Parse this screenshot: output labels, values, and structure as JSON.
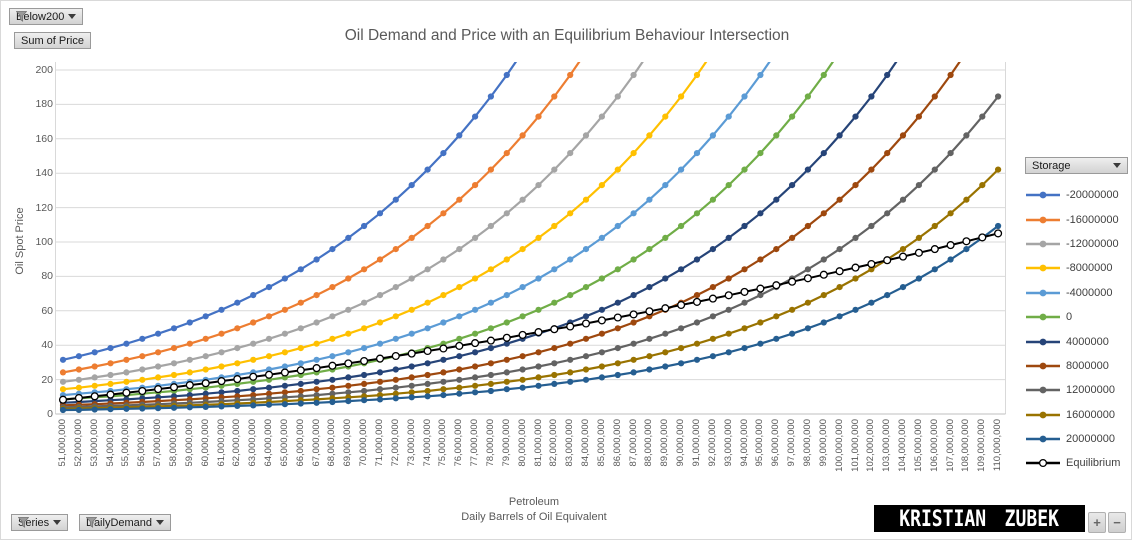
{
  "chart": {
    "title": "Oil Demand and Price with an Equilibrium Behaviour Intersection",
    "y_axis": {
      "title": "Oil Spot Price",
      "min": 0,
      "max": 200,
      "ticks": [
        0,
        20,
        40,
        60,
        80,
        100,
        120,
        140,
        160,
        180,
        200
      ]
    },
    "x_axis": {
      "title_line1": "Petroleum",
      "title_line2": "Daily Barrels of Oil Equivalent"
    }
  },
  "filters": {
    "below200": "Below200",
    "sum_of_price": "Sum of Price",
    "series": "Series",
    "daily_demand": "DailyDemand"
  },
  "legend": {
    "header": "Storage"
  },
  "watermark": {
    "text": "KRISTIAN ZUBEK"
  },
  "zoom_controls": {
    "plus": "+",
    "minus": "−"
  },
  "chart_data": {
    "type": "line",
    "title": "Oil Demand and Price with an Equilibrium Behaviour Intersection",
    "xlabel": "Petroleum - Daily Barrels of Oil Equivalent",
    "ylabel": "Oil Spot Price",
    "ylim": [
      0,
      200
    ],
    "grid": "horizontal",
    "legend_position": "right",
    "legend_title": "Storage",
    "categories": [
      "51,000,000",
      "52,000,000",
      "53,000,000",
      "54,000,000",
      "55,000,000",
      "56,000,000",
      "57,000,000",
      "58,000,000",
      "59,000,000",
      "60,000,000",
      "61,000,000",
      "62,000,000",
      "63,000,000",
      "64,000,000",
      "65,000,000",
      "66,000,000",
      "67,000,000",
      "68,000,000",
      "69,000,000",
      "70,000,000",
      "71,000,000",
      "72,000,000",
      "73,000,000",
      "74,000,000",
      "75,000,000",
      "76,000,000",
      "77,000,000",
      "78,000,000",
      "79,000,000",
      "80,000,000",
      "81,000,000",
      "82,000,000",
      "83,000,000",
      "84,000,000",
      "85,000,000",
      "86,000,000",
      "87,000,000",
      "88,000,000",
      "89,000,000",
      "90,000,000",
      "91,000,000",
      "92,000,000",
      "93,000,000",
      "94,000,000",
      "95,000,000",
      "96,000,000",
      "97,000,000",
      "98,000,000",
      "99,000,000",
      "100,000,000",
      "101,000,000",
      "102,000,000",
      "103,000,000",
      "104,000,000",
      "105,000,000",
      "106,000,000",
      "107,000,000",
      "108,000,000",
      "109,000,000",
      "110,000,000"
    ],
    "series": [
      {
        "name": "-20000000",
        "color": "#4472C4",
        "values": [
          31.5,
          33.6,
          35.9,
          38.3,
          40.9,
          43.7,
          46.7,
          49.8,
          53.2,
          56.8,
          60.6,
          64.7,
          69.1,
          73.8,
          78.8,
          84.1,
          89.8,
          95.9,
          102.4,
          109.3,
          116.7,
          124.6,
          133.1,
          142.1,
          151.7,
          162.0,
          172.9,
          184.6,
          197.1
        ]
      },
      {
        "name": "-16000000",
        "color": "#ED7D31",
        "values": [
          24.2,
          25.9,
          27.6,
          29.5,
          31.5,
          33.6,
          35.9,
          38.3,
          40.9,
          43.7,
          46.7,
          49.8,
          53.2,
          56.8,
          60.6,
          64.7,
          69.1,
          73.8,
          78.8,
          84.1,
          89.8,
          95.9,
          102.4,
          109.3,
          116.7,
          124.6,
          133.1,
          142.1,
          151.7,
          162.0,
          172.9,
          184.6,
          197.1
        ]
      },
      {
        "name": "-12000000",
        "color": "#A5A5A5",
        "values": [
          18.7,
          19.9,
          21.3,
          22.7,
          24.2,
          25.9,
          27.6,
          29.5,
          31.5,
          33.6,
          35.9,
          38.3,
          40.9,
          43.7,
          46.7,
          49.8,
          53.2,
          56.8,
          60.6,
          64.7,
          69.1,
          73.8,
          78.8,
          84.1,
          89.8,
          95.9,
          102.4,
          109.3,
          116.7,
          124.6,
          133.1,
          142.1,
          151.7,
          162.0,
          172.9,
          184.6,
          197.1
        ]
      },
      {
        "name": "-8000000",
        "color": "#FFC000",
        "values": [
          14.4,
          15.3,
          16.4,
          17.5,
          18.7,
          19.9,
          21.3,
          22.7,
          24.2,
          25.9,
          27.6,
          29.5,
          31.5,
          33.6,
          35.9,
          38.3,
          40.9,
          43.7,
          46.7,
          49.8,
          53.2,
          56.8,
          60.6,
          64.7,
          69.1,
          73.8,
          78.8,
          84.1,
          89.8,
          95.9,
          102.4,
          109.3,
          116.7,
          124.6,
          133.1,
          142.1,
          151.7,
          162.0,
          172.9,
          184.6,
          197.1
        ]
      },
      {
        "name": "-4000000",
        "color": "#5B9BD5",
        "values": [
          11.0,
          11.8,
          12.6,
          13.4,
          14.4,
          15.3,
          16.4,
          17.5,
          18.7,
          19.9,
          21.3,
          22.7,
          24.2,
          25.9,
          27.6,
          29.5,
          31.5,
          33.6,
          35.9,
          38.3,
          40.9,
          43.7,
          46.7,
          49.8,
          53.2,
          56.8,
          60.6,
          64.7,
          69.1,
          73.8,
          78.8,
          84.1,
          89.8,
          95.9,
          102.4,
          109.3,
          116.7,
          124.6,
          133.1,
          142.1,
          151.7,
          162.0,
          172.9,
          184.6,
          197.1
        ]
      },
      {
        "name": "0",
        "color": "#70AD47",
        "values": [
          8.5,
          9.1,
          9.7,
          10.3,
          11.0,
          11.8,
          12.6,
          13.4,
          14.4,
          15.3,
          16.4,
          17.5,
          18.7,
          19.9,
          21.3,
          22.7,
          24.2,
          25.9,
          27.6,
          29.5,
          31.5,
          33.6,
          35.9,
          38.3,
          40.9,
          43.7,
          46.7,
          49.8,
          53.2,
          56.8,
          60.6,
          64.7,
          69.1,
          73.8,
          78.8,
          84.1,
          89.8,
          95.9,
          102.4,
          109.3,
          116.7,
          124.6,
          133.1,
          142.1,
          151.7,
          162.0,
          172.9,
          184.6,
          197.1
        ]
      },
      {
        "name": "4000000",
        "color": "#264478",
        "values": [
          6.5,
          7.0,
          7.5,
          8.0,
          8.5,
          9.1,
          9.7,
          10.3,
          11.0,
          11.8,
          12.6,
          13.4,
          14.4,
          15.3,
          16.4,
          17.5,
          18.7,
          19.9,
          21.3,
          22.7,
          24.2,
          25.9,
          27.6,
          29.5,
          31.5,
          33.6,
          35.9,
          38.3,
          40.9,
          43.7,
          46.7,
          49.8,
          53.2,
          56.8,
          60.6,
          64.7,
          69.1,
          73.8,
          78.8,
          84.1,
          89.8,
          95.9,
          102.4,
          109.3,
          116.7,
          124.6,
          133.1,
          142.1,
          151.7,
          162.0,
          172.9,
          184.6,
          197.1
        ]
      },
      {
        "name": "8000000",
        "color": "#9E480E",
        "values": [
          5.0,
          5.4,
          5.7,
          6.1,
          6.5,
          7.0,
          7.5,
          8.0,
          8.5,
          9.1,
          9.7,
          10.3,
          11.0,
          11.8,
          12.6,
          13.4,
          14.4,
          15.3,
          16.4,
          17.5,
          18.7,
          19.9,
          21.3,
          22.7,
          24.2,
          25.9,
          27.6,
          29.5,
          31.5,
          33.6,
          35.9,
          38.3,
          40.9,
          43.7,
          46.7,
          49.8,
          53.2,
          56.8,
          60.6,
          64.7,
          69.1,
          73.8,
          78.8,
          84.1,
          89.8,
          95.9,
          102.4,
          109.3,
          116.7,
          124.6,
          133.1,
          142.1,
          151.7,
          162.0,
          172.9,
          184.6,
          197.1
        ]
      },
      {
        "name": "12000000",
        "color": "#636363",
        "values": [
          3.9,
          4.1,
          4.4,
          4.7,
          5.0,
          5.4,
          5.7,
          6.1,
          6.5,
          7.0,
          7.5,
          8.0,
          8.5,
          9.1,
          9.7,
          10.3,
          11.0,
          11.8,
          12.6,
          13.4,
          14.4,
          15.3,
          16.4,
          17.5,
          18.7,
          19.9,
          21.3,
          22.7,
          24.2,
          25.9,
          27.6,
          29.5,
          31.5,
          33.6,
          35.9,
          38.3,
          40.9,
          43.7,
          46.7,
          49.8,
          53.2,
          56.8,
          60.6,
          64.7,
          69.1,
          73.8,
          78.8,
          84.1,
          89.8,
          95.9,
          102.4,
          109.3,
          116.7,
          124.6,
          133.1,
          142.1,
          151.7,
          162.0,
          172.9,
          184.6
        ]
      },
      {
        "name": "16000000",
        "color": "#997300",
        "values": [
          3.0,
          3.2,
          3.4,
          3.6,
          3.9,
          4.1,
          4.4,
          4.7,
          5.0,
          5.4,
          5.7,
          6.1,
          6.5,
          7.0,
          7.5,
          8.0,
          8.5,
          9.1,
          9.7,
          10.3,
          11.0,
          11.8,
          12.6,
          13.4,
          14.4,
          15.3,
          16.4,
          17.5,
          18.7,
          19.9,
          21.3,
          22.7,
          24.2,
          25.9,
          27.6,
          29.5,
          31.5,
          33.6,
          35.9,
          38.3,
          40.9,
          43.7,
          46.7,
          49.8,
          53.2,
          56.8,
          60.6,
          64.7,
          69.1,
          73.8,
          78.8,
          84.1,
          89.8,
          95.9,
          102.4,
          109.3,
          116.7,
          124.6,
          133.1,
          142.1
        ]
      },
      {
        "name": "20000000",
        "color": "#255E91",
        "values": [
          2.3,
          2.4,
          2.6,
          2.8,
          3.0,
          3.2,
          3.4,
          3.6,
          3.9,
          4.1,
          4.4,
          4.7,
          5.0,
          5.4,
          5.7,
          6.1,
          6.5,
          7.0,
          7.5,
          8.0,
          8.5,
          9.1,
          9.7,
          10.3,
          11.0,
          11.8,
          12.6,
          13.4,
          14.4,
          15.3,
          16.4,
          17.5,
          18.7,
          19.9,
          21.3,
          22.7,
          24.2,
          25.9,
          27.6,
          29.5,
          31.5,
          33.6,
          35.9,
          38.3,
          40.9,
          43.7,
          46.7,
          49.8,
          53.2,
          56.8,
          60.6,
          64.7,
          69.1,
          73.8,
          78.8,
          84.1,
          89.8,
          95.9,
          102.4,
          109.3
        ]
      },
      {
        "name": "Equilibrium",
        "color": "#000000",
        "marker_fill": "#FFFFFF",
        "values": [
          8.3,
          9.3,
          10.3,
          11.3,
          12.4,
          13.4,
          14.5,
          15.6,
          16.8,
          17.9,
          19.1,
          20.3,
          21.6,
          22.8,
          24.1,
          25.4,
          26.7,
          28.1,
          29.4,
          30.8,
          32.2,
          33.7,
          35.1,
          36.6,
          38.1,
          39.6,
          41.2,
          42.7,
          44.3,
          46.0,
          47.6,
          49.3,
          50.9,
          52.6,
          54.4,
          56.1,
          57.9,
          59.7,
          61.5,
          63.4,
          65.2,
          67.1,
          69.0,
          71.0,
          72.9,
          74.9,
          76.9,
          78.9,
          81.0,
          83.0,
          85.1,
          87.2,
          89.4,
          91.5,
          93.7,
          95.9,
          98.2,
          100.4,
          102.7,
          105.0
        ]
      }
    ]
  }
}
